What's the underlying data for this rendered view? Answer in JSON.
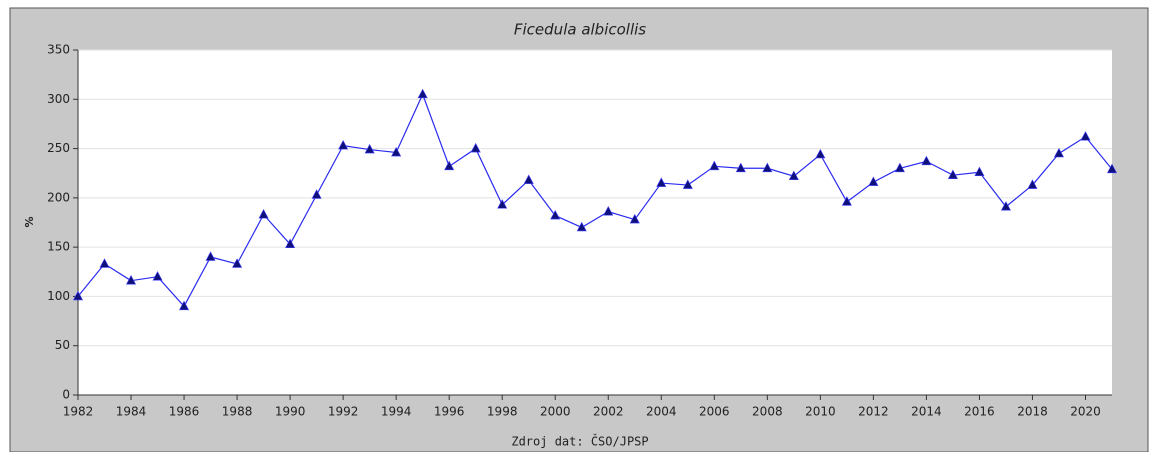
{
  "chart_data": {
    "type": "line",
    "title": "Ficedula albicollis",
    "y_label": "%",
    "source": "Zdroj dat: ČSO/JPSP",
    "x": [
      1982,
      1983,
      1984,
      1985,
      1986,
      1987,
      1988,
      1989,
      1990,
      1991,
      1992,
      1993,
      1994,
      1995,
      1996,
      1997,
      1998,
      1999,
      2000,
      2001,
      2002,
      2003,
      2004,
      2005,
      2006,
      2007,
      2008,
      2009,
      2010,
      2011,
      2012,
      2013,
      2014,
      2015,
      2016,
      2017,
      2018,
      2019,
      2020,
      2021
    ],
    "series": [
      {
        "color": "#2b2bf0",
        "marker_color": "#10107a",
        "values": [
          100,
          133,
          116,
          120,
          90,
          140,
          133,
          183,
          153,
          203,
          253,
          249,
          246,
          305,
          232,
          250,
          193,
          218,
          182,
          170,
          186,
          178,
          215,
          213,
          232,
          230,
          230,
          222,
          244,
          196,
          216,
          230,
          237,
          223,
          226,
          191,
          213,
          245,
          262,
          229
        ]
      }
    ],
    "xlim": [
      1982,
      2021
    ],
    "xticks": [
      1982,
      1984,
      1986,
      1988,
      1990,
      1992,
      1994,
      1996,
      1998,
      2000,
      2002,
      2004,
      2006,
      2008,
      2010,
      2012,
      2014,
      2016,
      2018,
      2020
    ],
    "ylim": [
      0,
      350
    ],
    "yticks": [
      0,
      50,
      100,
      150,
      200,
      250,
      300,
      350
    ],
    "grid": true
  }
}
